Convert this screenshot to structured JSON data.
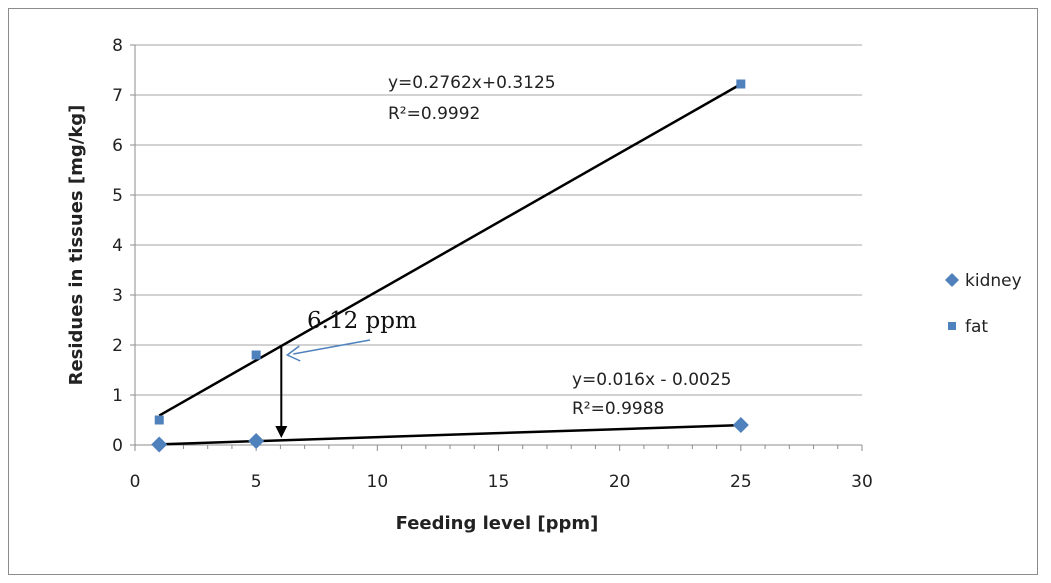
{
  "chart_data": {
    "type": "scatter",
    "title": "",
    "xlabel": "Feeding level [ppm]",
    "ylabel": "Residues in tissues [mg/kg]",
    "xlim": [
      0,
      30
    ],
    "ylim": [
      0,
      8
    ],
    "xticks": [
      "0",
      "5",
      "10",
      "15",
      "20",
      "25",
      "30"
    ],
    "yticks": [
      "0",
      "1",
      "2",
      "3",
      "4",
      "5",
      "6",
      "7",
      "8"
    ],
    "grid": "horizontal",
    "legend_position": "right",
    "series": [
      {
        "name": "kidney",
        "marker": "diamond",
        "color": "#4f81bd",
        "x": [
          1,
          5,
          25
        ],
        "y": [
          0.01,
          0.08,
          0.4
        ],
        "trendline": {
          "slope": 0.016,
          "intercept": -0.0025
        },
        "equation": "y=0.016x - 0.0025",
        "r_squared": "R²=0.9988"
      },
      {
        "name": "fat",
        "marker": "square",
        "color": "#4f81bd",
        "x": [
          1,
          5,
          25
        ],
        "y": [
          0.5,
          1.8,
          7.22
        ],
        "trendline": {
          "slope": 0.2762,
          "intercept": 0.3125
        },
        "equation": "y=0.2762x+0.3125",
        "r_squared": "R²=0.9992"
      }
    ],
    "annotation": {
      "text": "6.12 ppm",
      "x": 6.12,
      "y_top": 2.0,
      "y_bottom": 0.1
    }
  }
}
